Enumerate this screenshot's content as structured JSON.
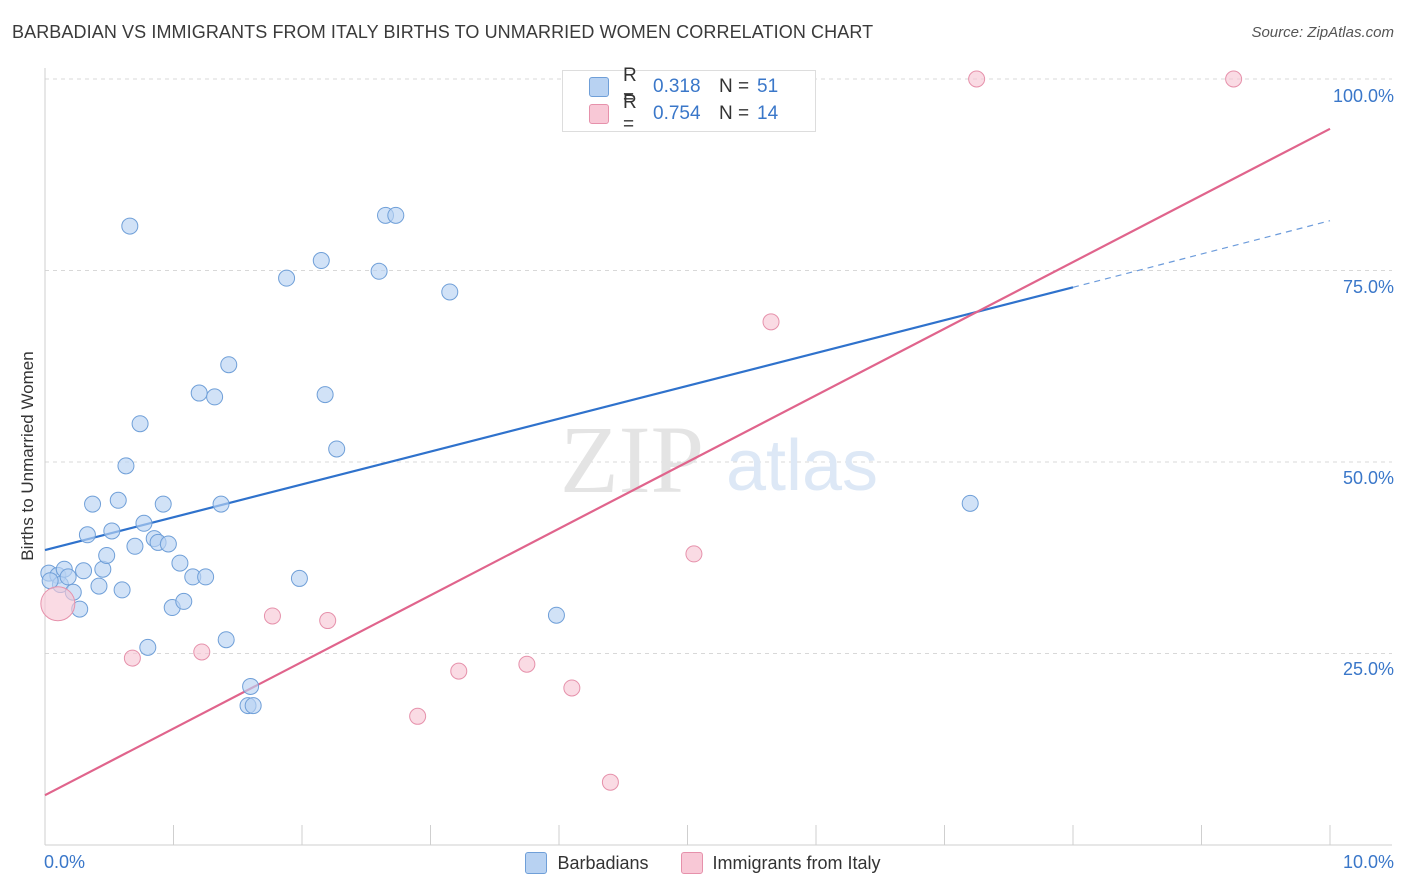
{
  "title": "BARBADIAN VS IMMIGRANTS FROM ITALY BIRTHS TO UNMARRIED WOMEN CORRELATION CHART",
  "source": "Source: ZipAtlas.com",
  "watermark": {
    "zip": "ZIP",
    "atlas": "atlas"
  },
  "legend_top": {
    "rows": [
      {
        "r_label": "R =",
        "r_value": "0.318",
        "n_label": "N =",
        "n_value": "51"
      },
      {
        "r_label": "R =",
        "r_value": "0.754",
        "n_label": "N =",
        "n_value": "14"
      }
    ]
  },
  "colors": {
    "blue_fill": "#b8d2f2",
    "blue_stroke": "#6f9fd8",
    "blue_line": "#2f72cc",
    "pink_fill": "#f8c8d6",
    "pink_stroke": "#e691ab",
    "pink_line": "#e0648c",
    "accent_text": "#3a77c9",
    "grid": "#d8d8d8"
  },
  "chart_data": {
    "type": "scatter",
    "title": "BARBADIAN VS IMMIGRANTS FROM ITALY BIRTHS TO UNMARRIED WOMEN CORRELATION CHART",
    "xlabel": "",
    "ylabel": "Births to Unmarried Women",
    "xlim": [
      0,
      10
    ],
    "ylim": [
      0,
      102
    ],
    "x_ticks": [
      "0.0%",
      "10.0%"
    ],
    "y_ticks": [
      "100.0%",
      "75.0%",
      "50.0%",
      "25.0%"
    ],
    "y_tick_values": [
      100,
      75,
      50,
      25
    ],
    "grid": true,
    "legend_position": "bottom",
    "series": [
      {
        "name": "Barbadians",
        "color": "#b8d2f2",
        "points": [
          [
            0.03,
            35.5
          ],
          [
            0.1,
            35.2
          ],
          [
            0.12,
            34.0
          ],
          [
            0.15,
            36.0
          ],
          [
            0.18,
            35.0
          ],
          [
            0.22,
            33.0
          ],
          [
            0.27,
            30.8
          ],
          [
            0.3,
            35.8
          ],
          [
            0.33,
            40.5
          ],
          [
            0.37,
            44.5
          ],
          [
            0.42,
            33.8
          ],
          [
            0.45,
            36.0
          ],
          [
            0.48,
            37.8
          ],
          [
            0.52,
            41.0
          ],
          [
            0.57,
            45.0
          ],
          [
            0.6,
            33.3
          ],
          [
            0.63,
            49.5
          ],
          [
            0.66,
            80.8
          ],
          [
            0.7,
            39.0
          ],
          [
            0.74,
            55.0
          ],
          [
            0.77,
            42.0
          ],
          [
            0.8,
            25.8
          ],
          [
            0.85,
            40.0
          ],
          [
            0.88,
            39.5
          ],
          [
            0.92,
            44.5
          ],
          [
            0.96,
            39.3
          ],
          [
            0.99,
            31.0
          ],
          [
            1.05,
            36.8
          ],
          [
            1.08,
            31.8
          ],
          [
            1.15,
            35.0
          ],
          [
            1.2,
            59.0
          ],
          [
            1.25,
            35.0
          ],
          [
            1.32,
            58.5
          ],
          [
            1.37,
            44.5
          ],
          [
            1.41,
            26.8
          ],
          [
            1.43,
            62.7
          ],
          [
            1.58,
            18.2
          ],
          [
            1.6,
            20.7
          ],
          [
            1.62,
            18.2
          ],
          [
            1.88,
            74.0
          ],
          [
            1.98,
            34.8
          ],
          [
            2.15,
            76.3
          ],
          [
            2.18,
            58.8
          ],
          [
            2.27,
            51.7
          ],
          [
            2.6,
            74.9
          ],
          [
            2.65,
            82.2
          ],
          [
            2.73,
            82.2
          ],
          [
            3.15,
            72.2
          ],
          [
            3.98,
            30.0
          ],
          [
            7.2,
            44.6
          ],
          [
            0.04,
            34.5
          ]
        ]
      },
      {
        "name": "Immigrants from Italy",
        "color": "#f8c8d6",
        "points": [
          [
            0.1,
            31.5
          ],
          [
            0.68,
            24.4
          ],
          [
            1.22,
            25.2
          ],
          [
            1.77,
            29.9
          ],
          [
            2.2,
            29.3
          ],
          [
            2.9,
            16.8
          ],
          [
            3.22,
            22.7
          ],
          [
            3.75,
            23.6
          ],
          [
            4.1,
            20.5
          ],
          [
            4.4,
            8.2
          ],
          [
            5.05,
            38.0
          ],
          [
            5.65,
            68.3
          ],
          [
            7.25,
            100.0
          ],
          [
            9.25,
            100.0
          ]
        ]
      }
    ],
    "trendlines": [
      {
        "series": "Barbadians",
        "x": [
          0,
          8.0
        ],
        "y": [
          38.5,
          72.8
        ],
        "dashed_extension": {
          "x": [
            8.0,
            10.0
          ],
          "y": [
            72.8,
            81.5
          ]
        }
      },
      {
        "series": "Immigrants from Italy",
        "x": [
          0,
          10.0
        ],
        "y": [
          6.5,
          93.5
        ]
      }
    ]
  }
}
